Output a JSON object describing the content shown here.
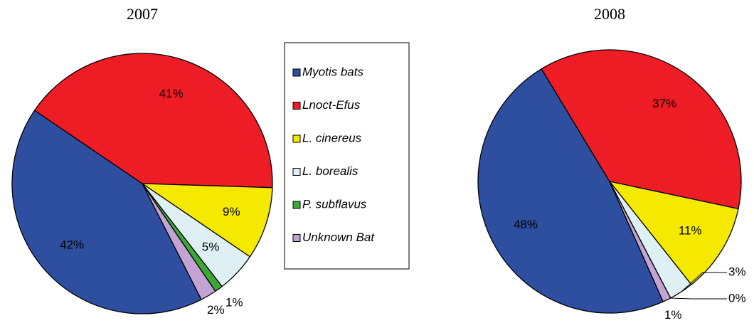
{
  "chart_data": [
    {
      "type": "pie",
      "title": "2007",
      "start_angle": 153,
      "values": [
        42,
        41,
        9,
        5,
        1,
        2
      ],
      "value_labels": [
        "42%",
        "41%",
        "9%",
        "5%",
        "1%",
        "2%"
      ]
    },
    {
      "type": "pie",
      "title": "2008",
      "start_angle": 156,
      "values": [
        48,
        37,
        11,
        3,
        0,
        1
      ],
      "value_labels": [
        "48%",
        "37%",
        "11%",
        "3%",
        "0%",
        "1%"
      ]
    }
  ],
  "legend": {
    "items": [
      {
        "name": "Myotis bats",
        "color": "#2e4fa0"
      },
      {
        "name": "Lnoct-Efus",
        "color": "#ee1c25"
      },
      {
        "name": "L. cinereus",
        "color": "#f5e900"
      },
      {
        "name": "L. borealis",
        "color": "#dff0f5"
      },
      {
        "name": "P. subflavus",
        "color": "#3aaa35"
      },
      {
        "name": "Unknown Bat",
        "color": "#c3a3d3"
      }
    ]
  }
}
